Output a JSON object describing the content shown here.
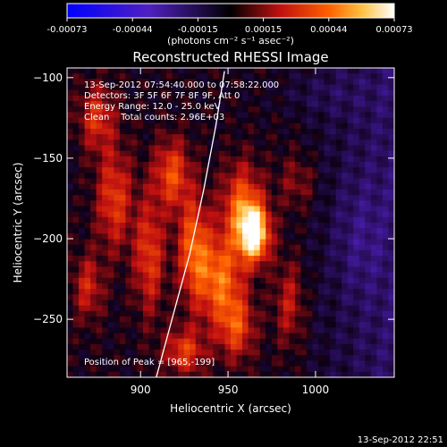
{
  "chart_data": {
    "type": "heatmap",
    "title": "Reconstructed RHESSI Image",
    "xlabel": "Heliocentric X (arcsec)",
    "ylabel": "Heliocentric Y (arcsec)",
    "xlim": [
      858,
      1045
    ],
    "ylim": [
      -286,
      -94
    ],
    "x_ticks": [
      900,
      950,
      1000
    ],
    "y_ticks": [
      -100,
      -150,
      -200,
      -250
    ],
    "colorbar": {
      "range": [
        -0.00073,
        0.00073
      ],
      "tick_labels": [
        "-0.00073",
        "-0.00044",
        "-0.00015",
        "0.00015",
        "0.00044",
        "0.00073"
      ],
      "units_label": "(photons cm⁻² s⁻¹ asec⁻²)"
    },
    "annotations": [
      "13-Sep-2012 07:54:40.000 to 07:58:22.000",
      "Detectors: 3F 5F 6F 7F 8F 9F, Att 0",
      "Energy Range: 12.0 - 25.0 keV",
      "Clean    Total counts: 2.96E+03"
    ],
    "peak_label": "Position of Peak = [965,-199]",
    "peak": [
      965,
      -199
    ],
    "limb_curve": [
      [
        908,
        -290
      ],
      [
        918,
        -250
      ],
      [
        928,
        -210
      ],
      [
        936,
        -170
      ],
      [
        943,
        -130
      ],
      [
        948,
        -96
      ]
    ],
    "blobs": [
      {
        "x": 965,
        "y": -197,
        "sx": 6,
        "sy": 12,
        "amp": 1.0
      },
      {
        "x": 958,
        "y": -180,
        "sx": 8,
        "sy": 18,
        "amp": 0.55
      },
      {
        "x": 945,
        "y": -225,
        "sx": 9,
        "sy": 20,
        "amp": 0.6
      },
      {
        "x": 930,
        "y": -205,
        "sx": 6,
        "sy": 22,
        "amp": 0.55
      },
      {
        "x": 918,
        "y": -160,
        "sx": 7,
        "sy": 15,
        "amp": 0.5
      },
      {
        "x": 905,
        "y": -210,
        "sx": 6,
        "sy": 25,
        "amp": 0.45
      },
      {
        "x": 885,
        "y": -175,
        "sx": 7,
        "sy": 22,
        "amp": 0.45
      },
      {
        "x": 875,
        "y": -125,
        "sx": 7,
        "sy": 14,
        "amp": 0.4
      },
      {
        "x": 870,
        "y": -230,
        "sx": 6,
        "sy": 14,
        "amp": 0.35
      },
      {
        "x": 925,
        "y": -270,
        "sx": 8,
        "sy": 10,
        "amp": 0.45
      },
      {
        "x": 955,
        "y": -255,
        "sx": 7,
        "sy": 14,
        "amp": 0.45
      },
      {
        "x": 985,
        "y": -240,
        "sx": 6,
        "sy": 18,
        "amp": 0.3
      },
      {
        "x": 990,
        "y": -165,
        "sx": 8,
        "sy": 12,
        "amp": 0.2
      },
      {
        "x": 1025,
        "y": -200,
        "sx": 10,
        "sy": 25,
        "amp": -0.15
      },
      {
        "x": 1000,
        "y": -110,
        "sx": 20,
        "sy": 10,
        "amp": -0.1
      }
    ]
  },
  "footer": {
    "timestamp": "13-Sep-2012 22:51"
  }
}
